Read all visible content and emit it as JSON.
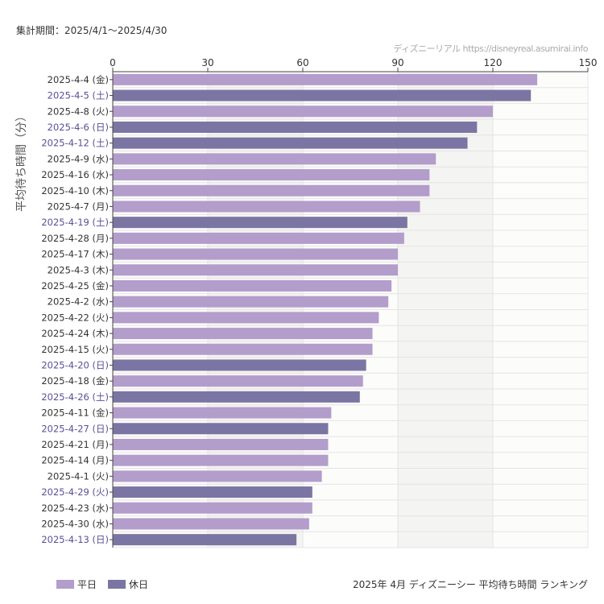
{
  "header": {
    "period": "集計期間：2025/4/1〜2025/4/30",
    "credit": "ディズニーリアル https://disneyreal.asumirai.info"
  },
  "footer": {
    "caption": "2025年 4月 ディズニーシー 平均待ち時間 ランキング"
  },
  "colors": {
    "weekday": "#b39dcb",
    "holiday": "#7b75a3",
    "holiday_label": "#5a4e96",
    "band": "#f4f4f2"
  },
  "chart_data": {
    "type": "bar",
    "orientation": "horizontal",
    "ylabel": "平均待ち時間（分）",
    "xlim": [
      0,
      150
    ],
    "xticks": [
      0,
      30,
      60,
      90,
      120,
      150
    ],
    "x_axis_position": "top",
    "grid": true,
    "legend": {
      "placement": "bottom-left",
      "entries": [
        {
          "label": "平日",
          "key": "weekday"
        },
        {
          "label": "休日",
          "key": "holiday"
        }
      ]
    },
    "categories": [
      "2025-4-4 (金)",
      "2025-4-5 (土)",
      "2025-4-8 (火)",
      "2025-4-6 (日)",
      "2025-4-12 (土)",
      "2025-4-9 (水)",
      "2025-4-16 (水)",
      "2025-4-10 (木)",
      "2025-4-7 (月)",
      "2025-4-19 (土)",
      "2025-4-28 (月)",
      "2025-4-17 (木)",
      "2025-4-3 (木)",
      "2025-4-25 (金)",
      "2025-4-2 (水)",
      "2025-4-22 (火)",
      "2025-4-24 (木)",
      "2025-4-15 (火)",
      "2025-4-20 (日)",
      "2025-4-18 (金)",
      "2025-4-26 (土)",
      "2025-4-11 (金)",
      "2025-4-27 (日)",
      "2025-4-21 (月)",
      "2025-4-14 (月)",
      "2025-4-1 (火)",
      "2025-4-29 (火)",
      "2025-4-23 (水)",
      "2025-4-30 (水)",
      "2025-4-13 (日)"
    ],
    "values": [
      134,
      132,
      120,
      115,
      112,
      102,
      100,
      100,
      97,
      93,
      92,
      90,
      90,
      88,
      87,
      84,
      82,
      82,
      80,
      79,
      78,
      69,
      68,
      68,
      68,
      66,
      63,
      63,
      62,
      58
    ],
    "day_type": [
      "weekday",
      "holiday",
      "weekday",
      "holiday",
      "holiday",
      "weekday",
      "weekday",
      "weekday",
      "weekday",
      "holiday",
      "weekday",
      "weekday",
      "weekday",
      "weekday",
      "weekday",
      "weekday",
      "weekday",
      "weekday",
      "holiday",
      "weekday",
      "holiday",
      "weekday",
      "holiday",
      "weekday",
      "weekday",
      "weekday",
      "holiday",
      "weekday",
      "weekday",
      "holiday"
    ]
  }
}
